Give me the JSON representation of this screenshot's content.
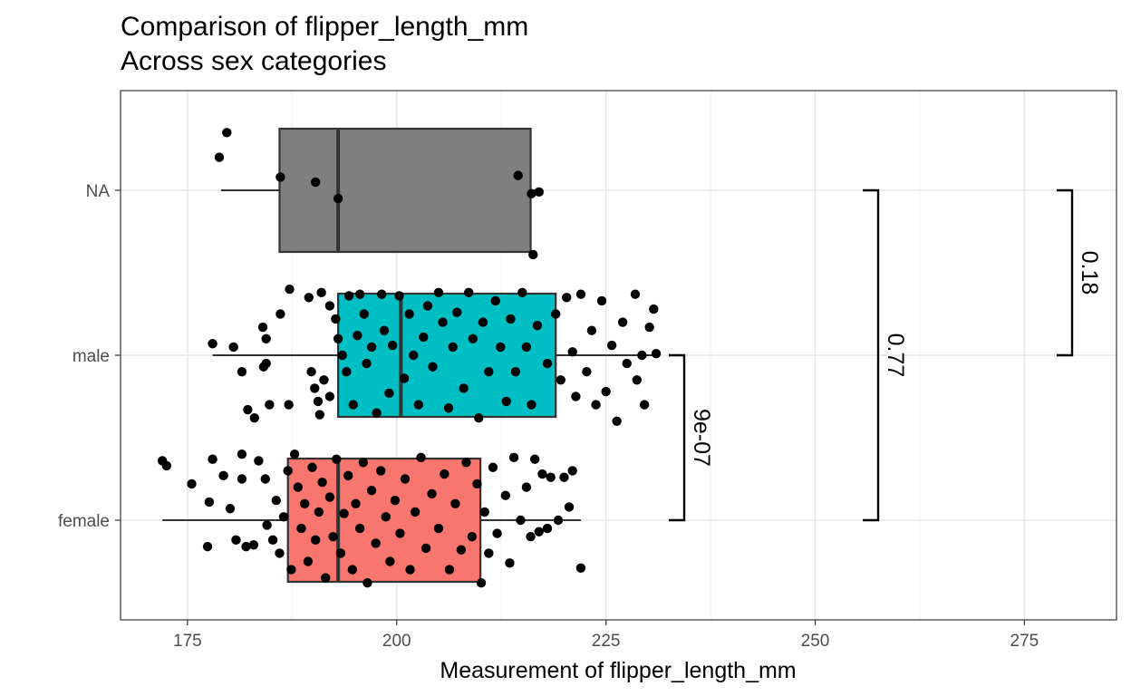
{
  "chart_data": {
    "type": "boxplot",
    "orientation": "horizontal",
    "title": "Comparison of flipper_length_mm",
    "subtitle": "Across sex categories",
    "xlabel": "Measurement of flipper_length_mm",
    "ylabel": "",
    "xlim": [
      167,
      286
    ],
    "x_ticks": [
      175,
      200,
      225,
      250,
      275
    ],
    "categories": [
      "female",
      "male",
      "NA"
    ],
    "grid": true,
    "legend": "none",
    "boxes": [
      {
        "category": "female",
        "color": "#f8766d",
        "whisker_low": 172,
        "q1": 187,
        "median": 193,
        "q3": 210,
        "whisker_high": 222
      },
      {
        "category": "male",
        "color": "#00bfc4",
        "whisker_low": 178,
        "q1": 193,
        "median": 200.5,
        "q3": 219,
        "whisker_high": 231
      },
      {
        "category": "NA",
        "color": "#7f7f7f",
        "whisker_low": 179,
        "q1": 186,
        "median": 193,
        "q3": 216,
        "whisker_high": 217
      }
    ],
    "points": {
      "NA": [
        {
          "x": 179.7,
          "y": 0.35
        },
        {
          "x": 178.8,
          "y": 0.2
        },
        {
          "x": 186.1,
          "y": 0.08
        },
        {
          "x": 190.3,
          "y": 0.05
        },
        {
          "x": 193.0,
          "y": -0.05
        },
        {
          "x": 214.5,
          "y": 0.09
        },
        {
          "x": 216.1,
          "y": -0.02
        },
        {
          "x": 217.0,
          "y": -0.01
        },
        {
          "x": 216.3,
          "y": -0.39
        }
      ],
      "male": [
        {
          "x": 178.0,
          "y": 0.07
        },
        {
          "x": 180.5,
          "y": 0.05
        },
        {
          "x": 181.5,
          "y": -0.1
        },
        {
          "x": 182.2,
          "y": -0.33
        },
        {
          "x": 183.0,
          "y": -0.38
        },
        {
          "x": 184.1,
          "y": -0.07
        },
        {
          "x": 184.0,
          "y": 0.17
        },
        {
          "x": 184.4,
          "y": 0.1
        },
        {
          "x": 184.4,
          "y": -0.05
        },
        {
          "x": 184.8,
          "y": -0.3
        },
        {
          "x": 186.1,
          "y": 0.25
        },
        {
          "x": 187.1,
          "y": -0.3
        },
        {
          "x": 187.2,
          "y": 0.4
        },
        {
          "x": 189.5,
          "y": 0.35
        },
        {
          "x": 189.8,
          "y": -0.1
        },
        {
          "x": 190.2,
          "y": -0.2
        },
        {
          "x": 190.6,
          "y": -0.28
        },
        {
          "x": 190.8,
          "y": -0.36
        },
        {
          "x": 191.0,
          "y": 0.38
        },
        {
          "x": 191.3,
          "y": -0.15
        },
        {
          "x": 192.0,
          "y": -0.25
        },
        {
          "x": 192.0,
          "y": 0.3
        },
        {
          "x": 192.7,
          "y": 0.22
        },
        {
          "x": 193.0,
          "y": 0.1
        },
        {
          "x": 193.5,
          "y": 0.0
        },
        {
          "x": 194.0,
          "y": -0.1
        },
        {
          "x": 194.3,
          "y": 0.36
        },
        {
          "x": 194.8,
          "y": -0.3
        },
        {
          "x": 195.3,
          "y": 0.12
        },
        {
          "x": 195.6,
          "y": 0.37
        },
        {
          "x": 196.1,
          "y": 0.25
        },
        {
          "x": 196.4,
          "y": -0.05
        },
        {
          "x": 197.0,
          "y": 0.05
        },
        {
          "x": 197.6,
          "y": -0.35
        },
        {
          "x": 198.2,
          "y": 0.37
        },
        {
          "x": 198.5,
          "y": 0.15
        },
        {
          "x": 199.1,
          "y": -0.23
        },
        {
          "x": 199.5,
          "y": 0.06
        },
        {
          "x": 200.3,
          "y": 0.36
        },
        {
          "x": 200.9,
          "y": -0.14
        },
        {
          "x": 201.5,
          "y": 0.25
        },
        {
          "x": 202.0,
          "y": 0.0
        },
        {
          "x": 202.6,
          "y": -0.3
        },
        {
          "x": 203.2,
          "y": 0.11
        },
        {
          "x": 203.7,
          "y": 0.3
        },
        {
          "x": 204.3,
          "y": -0.07
        },
        {
          "x": 205.0,
          "y": 0.38
        },
        {
          "x": 205.5,
          "y": 0.2
        },
        {
          "x": 206.2,
          "y": -0.32
        },
        {
          "x": 206.7,
          "y": 0.05
        },
        {
          "x": 207.2,
          "y": 0.26
        },
        {
          "x": 208.0,
          "y": -0.2
        },
        {
          "x": 208.6,
          "y": 0.38
        },
        {
          "x": 209.1,
          "y": 0.1
        },
        {
          "x": 209.8,
          "y": -0.38
        },
        {
          "x": 210.3,
          "y": 0.2
        },
        {
          "x": 211.0,
          "y": -0.1
        },
        {
          "x": 211.8,
          "y": 0.33
        },
        {
          "x": 212.4,
          "y": 0.05
        },
        {
          "x": 213.1,
          "y": -0.28
        },
        {
          "x": 213.6,
          "y": 0.22
        },
        {
          "x": 214.2,
          "y": -0.1
        },
        {
          "x": 215.0,
          "y": 0.38
        },
        {
          "x": 215.5,
          "y": 0.05
        },
        {
          "x": 216.1,
          "y": -0.3
        },
        {
          "x": 216.8,
          "y": 0.18
        },
        {
          "x": 218.0,
          "y": -0.05
        },
        {
          "x": 219.0,
          "y": 0.25
        },
        {
          "x": 219.6,
          "y": -0.15
        },
        {
          "x": 220.3,
          "y": 0.35
        },
        {
          "x": 221.0,
          "y": 0.02
        },
        {
          "x": 221.4,
          "y": -0.25
        },
        {
          "x": 222.0,
          "y": 0.37
        },
        {
          "x": 222.7,
          "y": -0.1
        },
        {
          "x": 223.3,
          "y": 0.15
        },
        {
          "x": 223.8,
          "y": -0.3
        },
        {
          "x": 224.5,
          "y": 0.33
        },
        {
          "x": 225.0,
          "y": -0.22
        },
        {
          "x": 225.7,
          "y": 0.06
        },
        {
          "x": 226.3,
          "y": -0.4
        },
        {
          "x": 227.0,
          "y": 0.2
        },
        {
          "x": 227.5,
          "y": -0.05
        },
        {
          "x": 228.5,
          "y": 0.37
        },
        {
          "x": 228.7,
          "y": -0.15
        },
        {
          "x": 229.3,
          "y": 0.0
        },
        {
          "x": 229.6,
          "y": -0.3
        },
        {
          "x": 230.2,
          "y": 0.17
        },
        {
          "x": 230.7,
          "y": 0.28
        },
        {
          "x": 231.0,
          "y": 0.01
        }
      ],
      "female": [
        {
          "x": 172.0,
          "y": 0.36
        },
        {
          "x": 172.5,
          "y": 0.33
        },
        {
          "x": 175.5,
          "y": 0.22
        },
        {
          "x": 177.4,
          "y": -0.16
        },
        {
          "x": 177.6,
          "y": 0.11
        },
        {
          "x": 178.0,
          "y": 0.37
        },
        {
          "x": 179.3,
          "y": 0.27
        },
        {
          "x": 180.1,
          "y": 0.07
        },
        {
          "x": 180.8,
          "y": -0.12
        },
        {
          "x": 181.5,
          "y": 0.4
        },
        {
          "x": 181.5,
          "y": 0.25
        },
        {
          "x": 182.0,
          "y": -0.16
        },
        {
          "x": 182.9,
          "y": -0.15
        },
        {
          "x": 183.5,
          "y": 0.36
        },
        {
          "x": 184.3,
          "y": 0.25
        },
        {
          "x": 184.5,
          "y": -0.03
        },
        {
          "x": 185.2,
          "y": -0.12
        },
        {
          "x": 185.6,
          "y": 0.12
        },
        {
          "x": 186.0,
          "y": -0.2
        },
        {
          "x": 186.5,
          "y": 0.02
        },
        {
          "x": 187.0,
          "y": 0.3
        },
        {
          "x": 187.4,
          "y": -0.3
        },
        {
          "x": 187.8,
          "y": 0.4
        },
        {
          "x": 188.2,
          "y": 0.2
        },
        {
          "x": 188.6,
          "y": -0.05
        },
        {
          "x": 189.0,
          "y": 0.1
        },
        {
          "x": 189.4,
          "y": -0.25
        },
        {
          "x": 189.9,
          "y": 0.32
        },
        {
          "x": 190.3,
          "y": -0.12
        },
        {
          "x": 190.7,
          "y": 0.05
        },
        {
          "x": 191.1,
          "y": 0.23
        },
        {
          "x": 191.5,
          "y": -0.35
        },
        {
          "x": 192.0,
          "y": 0.14
        },
        {
          "x": 192.4,
          "y": -0.1
        },
        {
          "x": 192.8,
          "y": 0.37
        },
        {
          "x": 193.3,
          "y": -0.2
        },
        {
          "x": 193.7,
          "y": 0.04
        },
        {
          "x": 194.2,
          "y": 0.27
        },
        {
          "x": 194.7,
          "y": -0.3
        },
        {
          "x": 195.1,
          "y": 0.1
        },
        {
          "x": 195.6,
          "y": -0.05
        },
        {
          "x": 196.0,
          "y": 0.35
        },
        {
          "x": 196.5,
          "y": -0.38
        },
        {
          "x": 197.0,
          "y": 0.18
        },
        {
          "x": 197.5,
          "y": -0.14
        },
        {
          "x": 198.1,
          "y": 0.3
        },
        {
          "x": 198.7,
          "y": 0.02
        },
        {
          "x": 199.2,
          "y": -0.25
        },
        {
          "x": 199.8,
          "y": 0.12
        },
        {
          "x": 200.4,
          "y": -0.08
        },
        {
          "x": 201.0,
          "y": 0.25
        },
        {
          "x": 201.6,
          "y": -0.3
        },
        {
          "x": 202.2,
          "y": 0.05
        },
        {
          "x": 202.9,
          "y": 0.38
        },
        {
          "x": 203.5,
          "y": -0.17
        },
        {
          "x": 204.2,
          "y": 0.16
        },
        {
          "x": 205.0,
          "y": -0.05
        },
        {
          "x": 205.7,
          "y": 0.28
        },
        {
          "x": 206.3,
          "y": -0.3
        },
        {
          "x": 207.0,
          "y": 0.1
        },
        {
          "x": 207.7,
          "y": -0.18
        },
        {
          "x": 208.3,
          "y": 0.35
        },
        {
          "x": 209.0,
          "y": -0.1
        },
        {
          "x": 209.6,
          "y": 0.22
        },
        {
          "x": 210.1,
          "y": -0.38
        },
        {
          "x": 210.5,
          "y": 0.05
        },
        {
          "x": 211.0,
          "y": -0.2
        },
        {
          "x": 211.5,
          "y": 0.32
        },
        {
          "x": 212.0,
          "y": -0.08
        },
        {
          "x": 213.0,
          "y": 0.15
        },
        {
          "x": 213.5,
          "y": -0.26
        },
        {
          "x": 214.0,
          "y": 0.38
        },
        {
          "x": 214.8,
          "y": 0.0
        },
        {
          "x": 215.5,
          "y": 0.2
        },
        {
          "x": 216.0,
          "y": -0.1
        },
        {
          "x": 216.5,
          "y": 0.37
        },
        {
          "x": 217.0,
          "y": -0.07
        },
        {
          "x": 217.4,
          "y": 0.28
        },
        {
          "x": 218.0,
          "y": -0.05
        },
        {
          "x": 218.4,
          "y": 0.26
        },
        {
          "x": 219.3,
          "y": 0.0
        },
        {
          "x": 220.0,
          "y": 0.26
        },
        {
          "x": 220.6,
          "y": 0.08
        },
        {
          "x": 221.0,
          "y": 0.3
        },
        {
          "x": 222.0,
          "y": -0.29
        }
      ]
    },
    "comparisons": [
      {
        "group1": "female",
        "group2": "male",
        "p_label": "9e-07"
      },
      {
        "group1": "female",
        "group2": "NA",
        "p_label": "0.77"
      },
      {
        "group1": "male",
        "group2": "NA",
        "p_label": "0.18"
      }
    ]
  }
}
